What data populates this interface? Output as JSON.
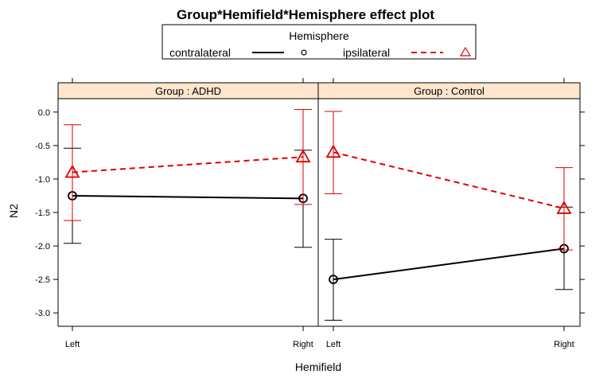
{
  "chart_data": {
    "type": "line",
    "title": "Group*Hemifield*Hemisphere effect plot",
    "xlabel": "Hemifield",
    "ylabel": "N2",
    "ylim": [
      -3.2,
      0.2
    ],
    "yticks": [
      "0.0",
      "-0.5",
      "-1.0",
      "-1.5",
      "-2.0",
      "-2.5",
      "-3.0"
    ],
    "ytick_values": [
      0.0,
      -0.5,
      -1.0,
      -1.5,
      -2.0,
      -2.5,
      -3.0
    ],
    "categories": [
      "Left",
      "Right"
    ],
    "legend": {
      "title": "Hemisphere",
      "position": "top",
      "entries": [
        {
          "label": "contralateral",
          "color": "#000000",
          "line": "solid",
          "marker": "circle"
        },
        {
          "label": "ipsilateral",
          "color": "#dd0000",
          "line": "dashed",
          "marker": "triangle"
        }
      ]
    },
    "panels": [
      {
        "strip": "Group : ADHD",
        "series": [
          {
            "name": "contralateral",
            "values": [
              -1.25,
              -1.29
            ],
            "lower": [
              -1.96,
              -2.02
            ],
            "upper": [
              -0.54,
              -0.57
            ]
          },
          {
            "name": "ipsilateral",
            "values": [
              -0.9,
              -0.67
            ],
            "lower": [
              -1.62,
              -1.38
            ],
            "upper": [
              -0.19,
              0.04
            ]
          }
        ]
      },
      {
        "strip": "Group : Control",
        "series": [
          {
            "name": "contralateral",
            "values": [
              -2.5,
              -2.04
            ],
            "lower": [
              -3.11,
              -2.65
            ],
            "upper": [
              -1.9,
              -1.42
            ]
          },
          {
            "name": "ipsilateral",
            "values": [
              -0.6,
              -1.44
            ],
            "lower": [
              -1.22,
              -2.06
            ],
            "upper": [
              0.01,
              -0.83
            ]
          }
        ]
      }
    ],
    "colors": {
      "strip_fill": "#ffe5cc",
      "contralateral": "#000000",
      "ipsilateral": "#dd0000"
    }
  }
}
